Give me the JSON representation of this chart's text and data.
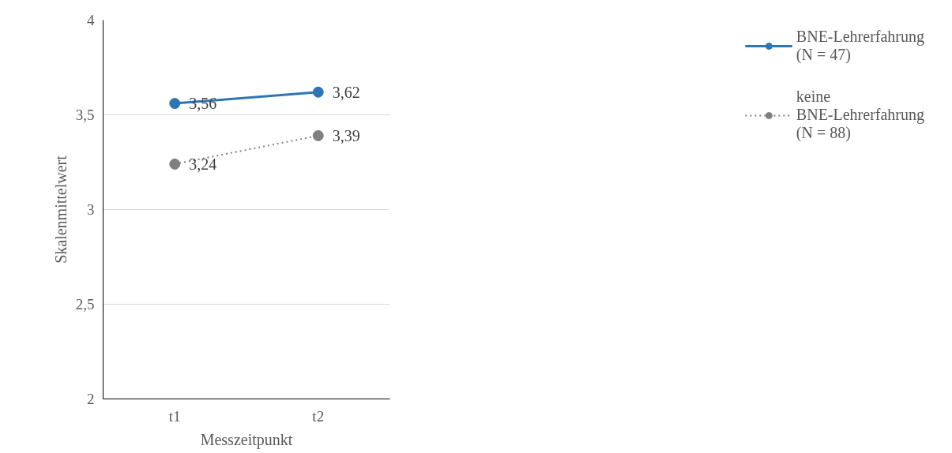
{
  "chart_data": {
    "type": "line",
    "xlabel": "Messzeitpunkt",
    "ylabel": "Skalenmittelwert",
    "categories": [
      "t1",
      "t2"
    ],
    "ylim": [
      2,
      4
    ],
    "yticks": [
      2,
      {
        "value": 2.5,
        "label": "2,5"
      },
      3,
      {
        "value": 3.5,
        "label": "3,5"
      },
      4
    ],
    "grid": "y",
    "legend": "right",
    "marker": "circle",
    "series": [
      {
        "name": "BNE-Lehrerfahrung (N = 47)",
        "color": "#2e75b6",
        "values": [
          3.56,
          3.62
        ],
        "value_labels": [
          "3,56",
          "3,62"
        ],
        "line_style": "solid"
      },
      {
        "name": "keine BNE-Lehrerfahrung (N = 88)",
        "color": "#808080",
        "values": [
          3.24,
          3.39
        ],
        "value_labels": [
          "3,24",
          "3,39"
        ],
        "line_style": "dotted"
      }
    ]
  }
}
